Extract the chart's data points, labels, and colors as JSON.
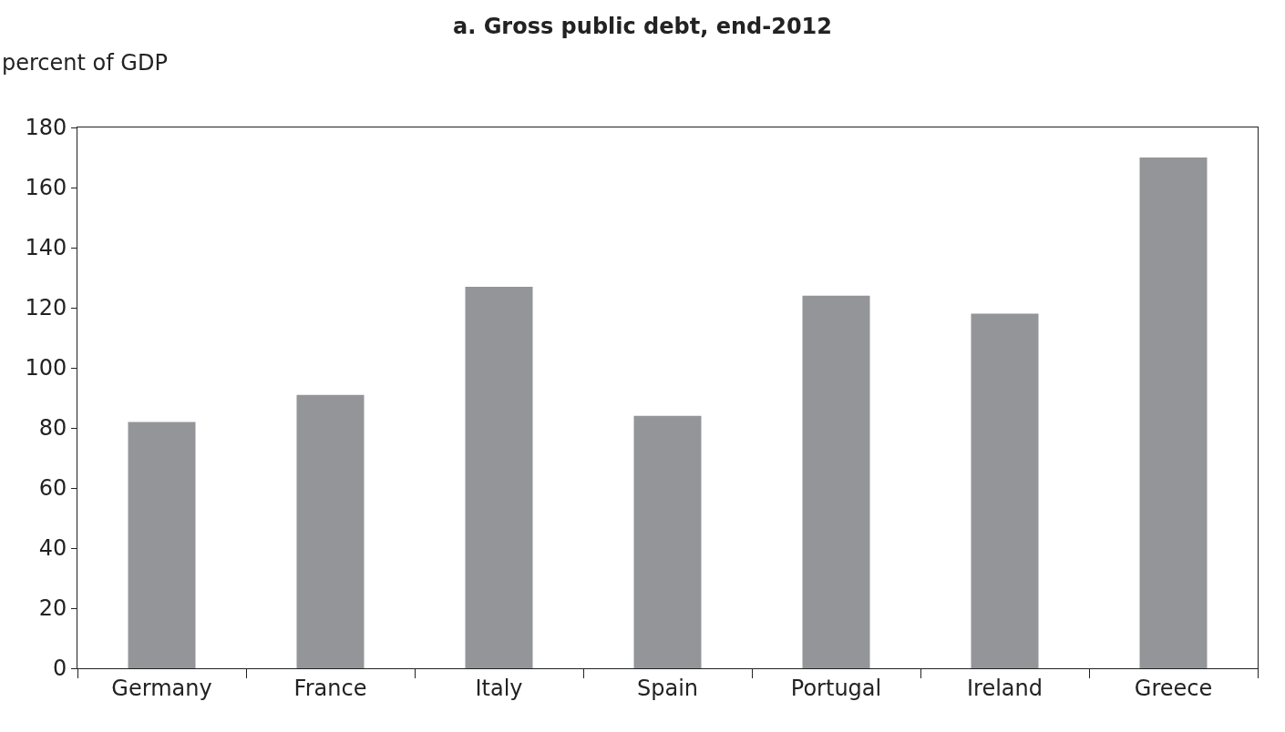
{
  "chart_data": {
    "type": "bar",
    "title": "a. Gross public debt, end-2012",
    "ylabel": "percent of GDP",
    "categories": [
      "Germany",
      "France",
      "Italy",
      "Spain",
      "Portugal",
      "Ireland",
      "Greece"
    ],
    "values": [
      82,
      91,
      127,
      84,
      124,
      118,
      170
    ],
    "color": "#939598",
    "ylim": [
      0,
      180
    ],
    "yticks": [
      0,
      20,
      40,
      60,
      80,
      100,
      120,
      140,
      160,
      180
    ]
  }
}
